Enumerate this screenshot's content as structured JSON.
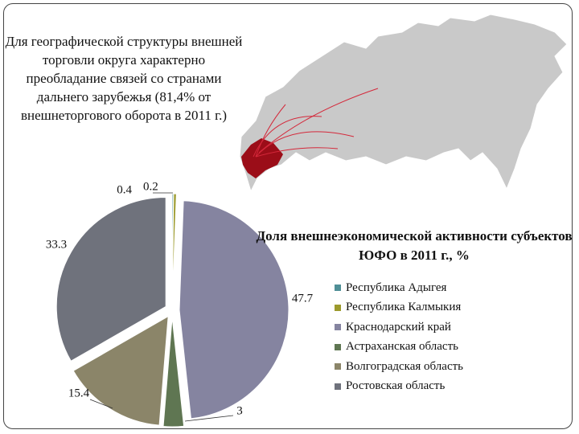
{
  "text": "Для географической структуры внешней торговли округа характерно преобладание связей со странами дальнего зарубежья (81,4% от внешнеторгового оборота в 2011 г.)",
  "chart_data": {
    "type": "pie",
    "title": "Доля внешнеэкономической активности субъектов ЮФО в 2011 г., %",
    "categories": [
      "Республика Адыгея",
      "Республика Калмыкия",
      "Краснодарский край",
      "Астраханская область",
      "Волгоградская область",
      "Ростовская область"
    ],
    "values": [
      0.2,
      0.4,
      47.7,
      3,
      15.4,
      33.3
    ],
    "colors": [
      "#4f8f96",
      "#9c9a2c",
      "#8584a0",
      "#5f7652",
      "#8b8569",
      "#6f727c"
    ],
    "legend": "right"
  }
}
